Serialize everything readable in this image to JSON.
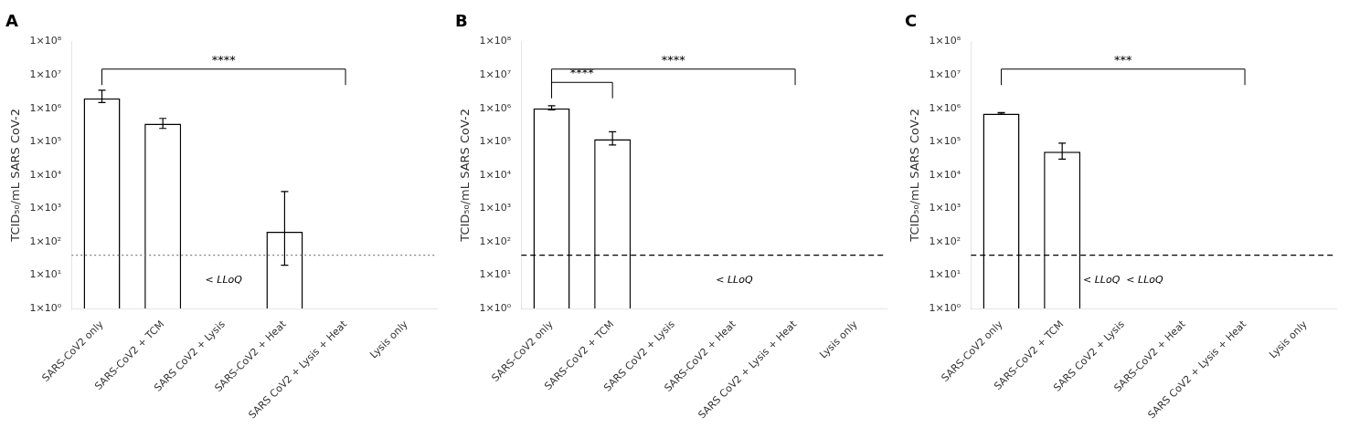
{
  "chart_data": [
    {
      "type": "bar",
      "title": "A",
      "categories": [
        "SARS-CoV2 only",
        "SARS-CoV2 + TCM",
        "SARS CoV2 + Lysis",
        "SARS-CoV2 + Heat",
        "SARS CoV2 + Lysis + Heat",
        "Lysis only"
      ],
      "values": [
        2000000,
        350000,
        null,
        200,
        null,
        null
      ],
      "errors_upper": [
        1500000,
        150000,
        null,
        3000,
        null,
        null
      ],
      "errors_lower": [
        500000,
        100000,
        null,
        180,
        null,
        null
      ],
      "color": "white",
      "ylabel": "TCID₅₀/mL SARS CoV-2",
      "log": "y",
      "grid": false,
      "legend": "none",
      "ylim": [
        1,
        100000000
      ],
      "yticks": [
        {
          "value": 1,
          "label": "1×10⁰"
        },
        {
          "value": 10,
          "label": "1×10¹"
        },
        {
          "value": 100,
          "label": "1×10²"
        },
        {
          "value": 1000,
          "label": "1×10³"
        },
        {
          "value": 10000,
          "label": "1×10⁴"
        },
        {
          "value": 100000,
          "label": "1×10⁵"
        },
        {
          "value": 1000000,
          "label": "1×10⁶"
        },
        {
          "value": 10000000,
          "label": "1×10⁷"
        },
        {
          "value": 100000000,
          "label": "1×10⁸"
        }
      ],
      "annotations": [
        {
          "type": "hline",
          "y": 40,
          "line_style": "dotted",
          "color": "gray"
        },
        {
          "type": "text",
          "text": "< LLoQ",
          "x": "SARS CoV2 + Lysis",
          "y": 10
        },
        {
          "type": "bracket",
          "x1": "SARS-CoV2 only",
          "x2": "SARS CoV2 + Lysis + Heat",
          "y": 15000000,
          "y_bottom": 5000000,
          "text": "****"
        }
      ]
    },
    {
      "type": "bar",
      "title": "B",
      "categories": [
        "SARS-CoV2 only",
        "SARS-CoV2 + TCM",
        "SARS CoV2 + Lysis",
        "SARS-CoV2 + Heat",
        "SARS CoV2 + Lysis + Heat",
        "Lysis only"
      ],
      "values": [
        1000000,
        120000,
        null,
        null,
        null,
        null
      ],
      "errors_upper": [
        200000,
        80000,
        null,
        null,
        null,
        null
      ],
      "errors_lower": [
        100000,
        40000,
        null,
        null,
        null,
        null
      ],
      "color": "white",
      "ylabel": "TCID₅₀/mL SARS CoV-2",
      "log": "y",
      "grid": false,
      "legend": "none",
      "ylim": [
        1,
        100000000
      ],
      "yticks": [
        {
          "value": 1,
          "label": "1×10⁰"
        },
        {
          "value": 10,
          "label": "1×10¹"
        },
        {
          "value": 100,
          "label": "1×10²"
        },
        {
          "value": 1000,
          "label": "1×10³"
        },
        {
          "value": 10000,
          "label": "1×10⁴"
        },
        {
          "value": 100000,
          "label": "1×10⁵"
        },
        {
          "value": 1000000,
          "label": "1×10⁶"
        },
        {
          "value": 10000000,
          "label": "1×10⁷"
        },
        {
          "value": 100000000,
          "label": "1×10⁸"
        }
      ],
      "annotations": [
        {
          "type": "hline",
          "y": 40,
          "line_style": "dashed",
          "color": "black"
        },
        {
          "type": "text",
          "text": "< LLoQ",
          "x": "SARS-CoV2 + Heat",
          "y": 10
        },
        {
          "type": "bracket",
          "x1": "SARS-CoV2 only",
          "x2": "SARS CoV2 + Lysis + Heat",
          "y": 15000000,
          "y_bottom": 5000000,
          "text": "****"
        },
        {
          "type": "bracket",
          "x1": "SARS-CoV2 only",
          "x2": "SARS-CoV2 + TCM",
          "y": 6000000,
          "y_bottom": 2000000,
          "text": "****"
        }
      ]
    },
    {
      "type": "bar",
      "title": "C",
      "categories": [
        "SARS-CoV2 only",
        "SARS-CoV2 + TCM",
        "SARS CoV2 + Lysis",
        "SARS-CoV2 + Heat",
        "SARS CoV2 + Lysis + Heat",
        "Lysis only"
      ],
      "values": [
        700000,
        50000,
        null,
        null,
        null,
        null
      ],
      "errors_upper": [
        50000,
        40000,
        null,
        null,
        null,
        null
      ],
      "errors_lower": [
        30000,
        20000,
        null,
        null,
        null,
        null
      ],
      "color": "white",
      "ylabel": "TCID₅₀/mL SARS CoV-2",
      "log": "y",
      "grid": false,
      "legend": "none",
      "ylim": [
        1,
        100000000
      ],
      "yticks": [
        {
          "value": 1,
          "label": "1×10⁰"
        },
        {
          "value": 10,
          "label": "1×10¹"
        },
        {
          "value": 100,
          "label": "1×10²"
        },
        {
          "value": 1000,
          "label": "1×10³"
        },
        {
          "value": 10000,
          "label": "1×10⁴"
        },
        {
          "value": 100000,
          "label": "1×10⁵"
        },
        {
          "value": 1000000,
          "label": "1×10⁶"
        },
        {
          "value": 10000000,
          "label": "1×10⁷"
        },
        {
          "value": 100000000,
          "label": "1×10⁸"
        }
      ],
      "annotations": [
        {
          "type": "hline",
          "y": 40,
          "line_style": "dashed",
          "color": "black"
        },
        {
          "type": "text",
          "text": "< LLoQ  < LLoQ",
          "x": "SARS CoV2 + Lysis",
          "y": 10
        },
        {
          "type": "bracket",
          "x1": "SARS-CoV2 only",
          "x2": "SARS CoV2 + Lysis + Heat",
          "y": 15000000,
          "y_bottom": 5000000,
          "text": "***"
        }
      ]
    }
  ]
}
